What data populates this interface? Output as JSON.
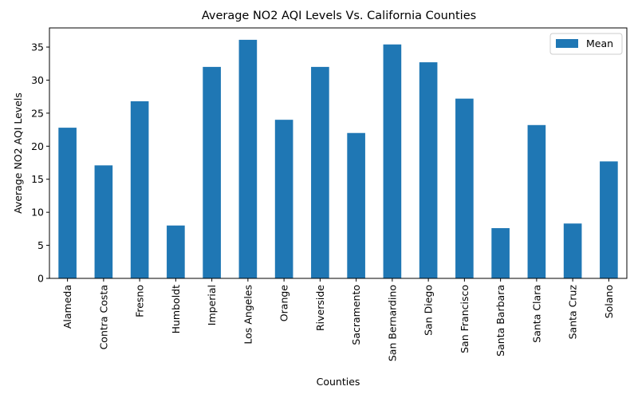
{
  "chart_data": {
    "type": "bar",
    "title": "Average NO2 AQI Levels Vs. California Counties",
    "xlabel": "Counties",
    "ylabel": "Average NO2 AQI Levels",
    "categories": [
      "Alameda",
      "Contra Costa",
      "Fresno",
      "Humboldt",
      "Imperial",
      "Los Angeles",
      "Orange",
      "Riverside",
      "Sacramento",
      "San Bernardino",
      "San Diego",
      "San Francisco",
      "Santa Barbara",
      "Santa Clara",
      "Santa Cruz",
      "Solano"
    ],
    "series": [
      {
        "name": "Mean",
        "color": "#1f77b4",
        "values": [
          22.8,
          17.1,
          26.8,
          8.0,
          32.0,
          36.1,
          24.0,
          32.0,
          22.0,
          35.4,
          32.7,
          27.2,
          7.6,
          23.2,
          8.3,
          17.7
        ]
      }
    ],
    "yticks": [
      0,
      5,
      10,
      15,
      20,
      25,
      30,
      35
    ],
    "ylim": [
      0,
      37.9
    ],
    "grid": false,
    "legend_position": "upper right"
  }
}
